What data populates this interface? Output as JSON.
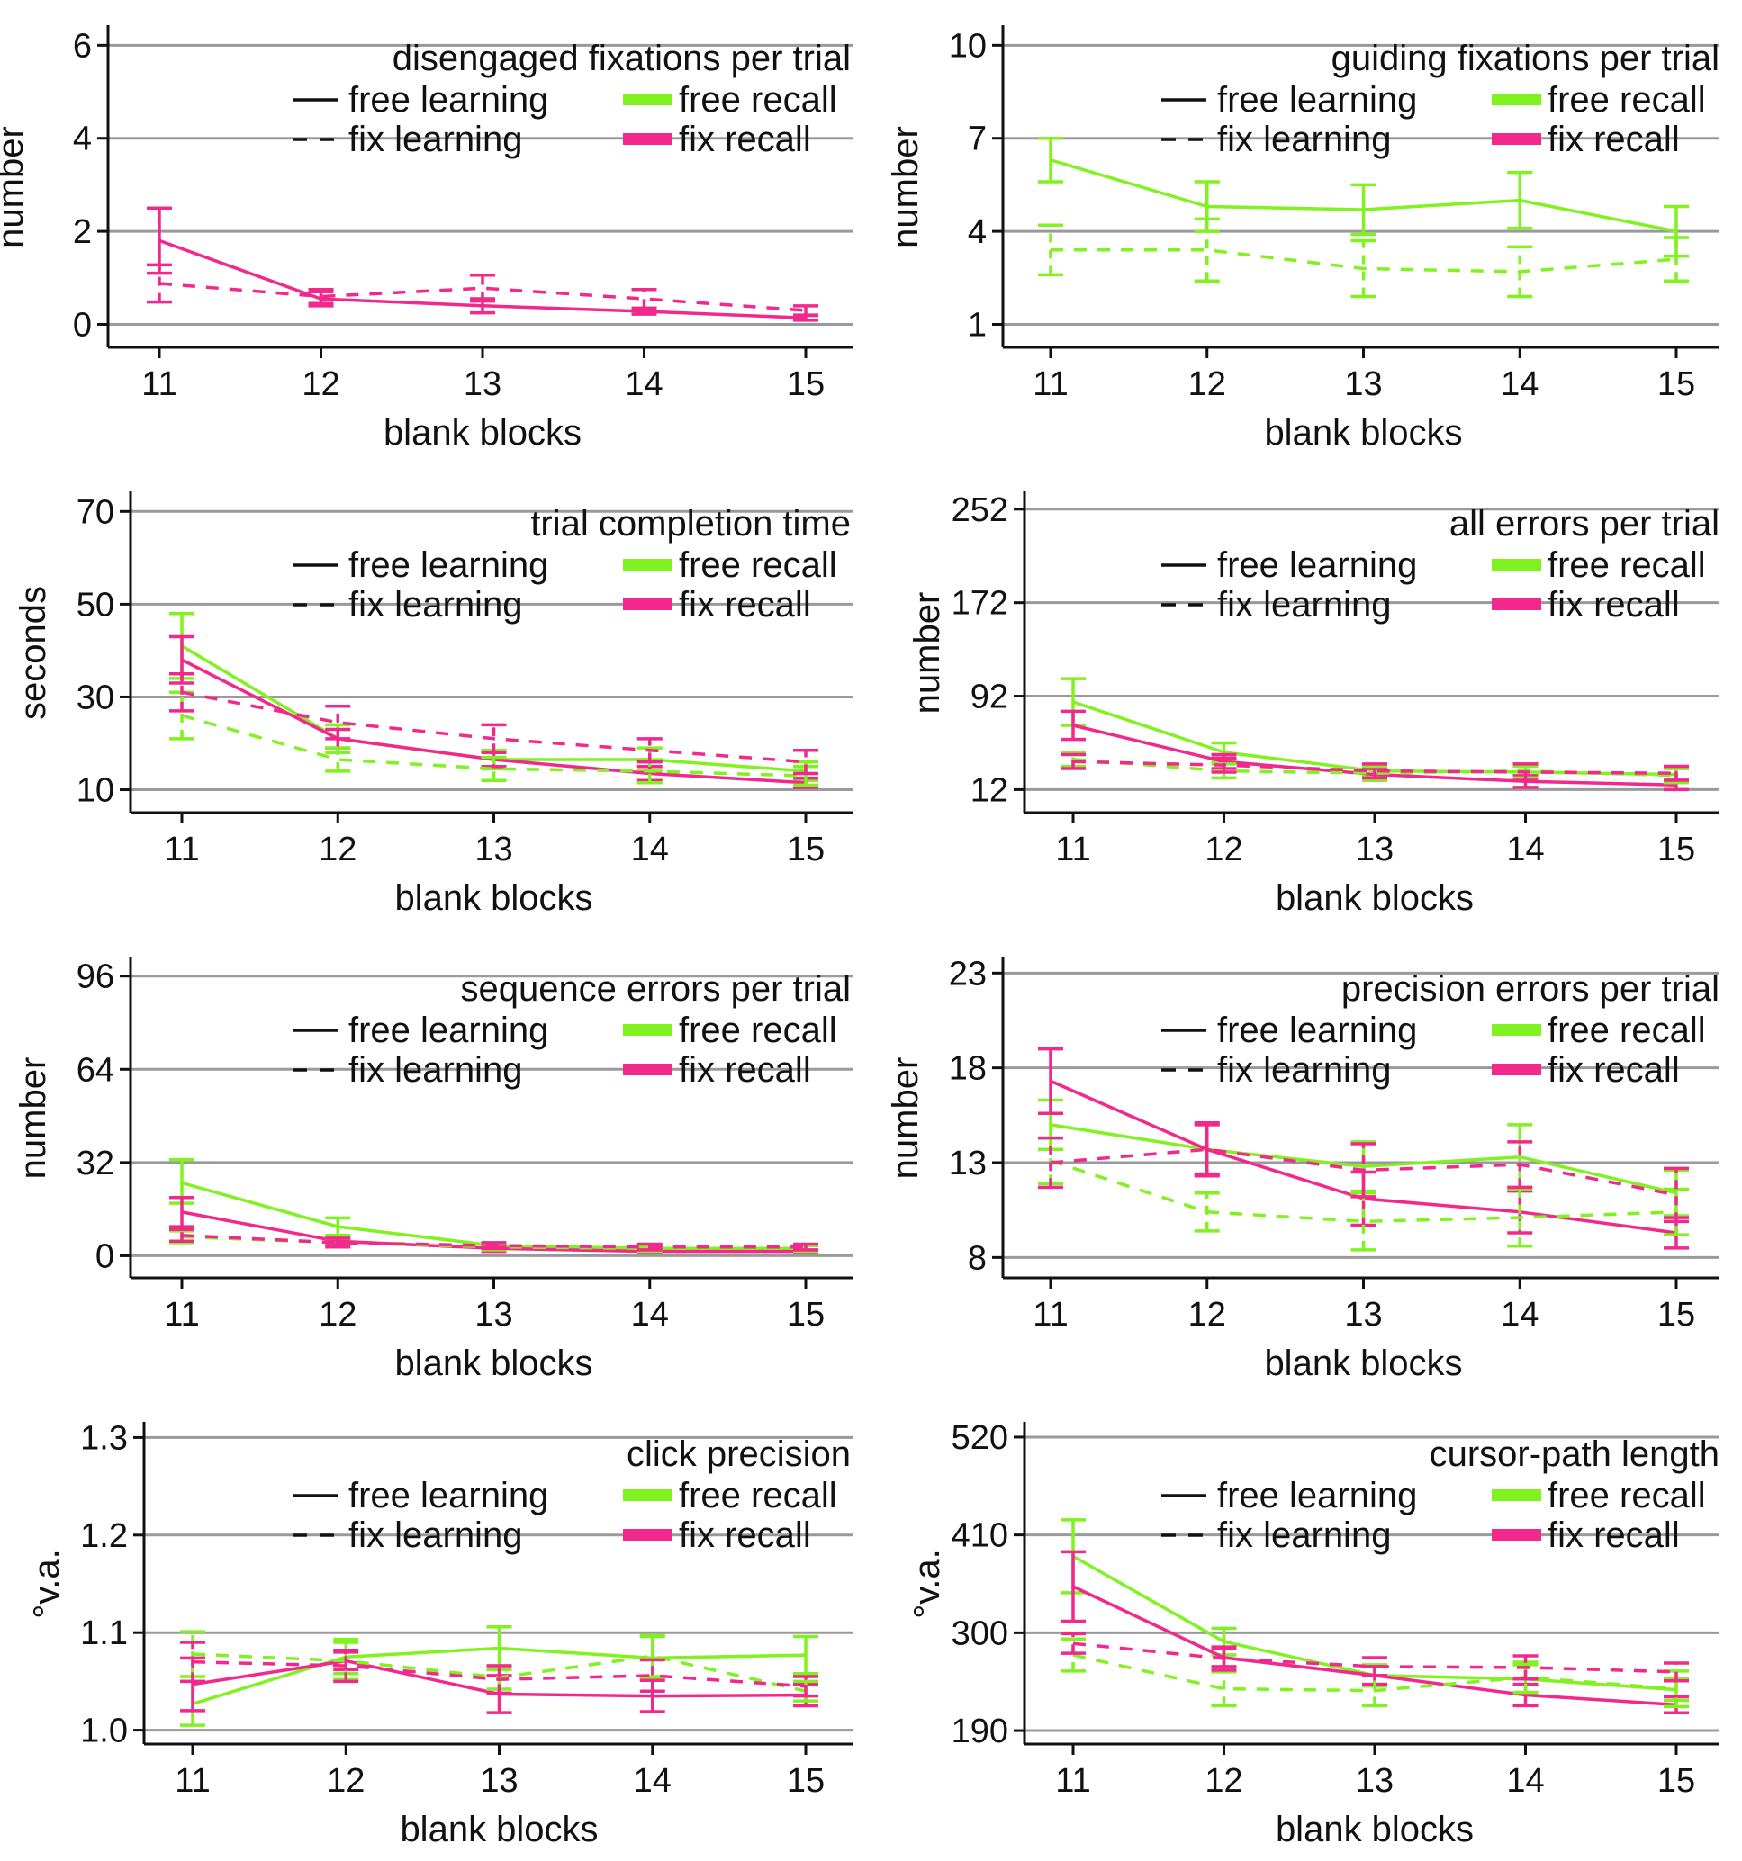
{
  "figure": {
    "colors": {
      "free_recall": "#80f21f",
      "fix_recall": "#f2288c",
      "grid": "#9a9a9a",
      "axis": "#111111"
    },
    "legend": {
      "free_learning": "free learning",
      "fix_learning": "fix learning",
      "free_recall": "free recall",
      "fix_recall": "fix recall"
    }
  },
  "chart_data": [
    {
      "type": "line",
      "title": "disengaged fixations per trial",
      "xlabel": "blank blocks",
      "ylabel": "number",
      "categories": [
        "11",
        "12",
        "13",
        "14",
        "15"
      ],
      "yticks": [
        0,
        2,
        4,
        6
      ],
      "ytick_labels": [
        "0",
        "2",
        "4",
        "6"
      ],
      "ylim": [
        -0.3,
        6.2
      ],
      "grid": true,
      "series": [
        {
          "name": "free learning / fix recall",
          "recall": "fix",
          "learning": "free",
          "values": [
            1.8,
            0.55,
            0.4,
            0.28,
            0.14
          ],
          "lower": [
            1.1,
            0.4,
            0.25,
            0.22,
            0.09
          ],
          "upper": [
            2.5,
            0.7,
            0.55,
            0.34,
            0.19
          ]
        },
        {
          "name": "fix learning / fix recall",
          "recall": "fix",
          "learning": "fix",
          "values": [
            0.88,
            0.6,
            0.78,
            0.55,
            0.3
          ],
          "lower": [
            0.48,
            0.45,
            0.5,
            0.35,
            0.2
          ],
          "upper": [
            1.28,
            0.75,
            1.06,
            0.75,
            0.4
          ]
        }
      ]
    },
    {
      "type": "line",
      "title": "guiding fixations per trial",
      "xlabel": "blank blocks",
      "ylabel": "number",
      "categories": [
        "11",
        "12",
        "13",
        "14",
        "15"
      ],
      "yticks": [
        1,
        4,
        7,
        10
      ],
      "ytick_labels": [
        "1",
        "4",
        "7",
        "10"
      ],
      "ylim": [
        0.55,
        10.3
      ],
      "grid": true,
      "series": [
        {
          "name": "free learning / free recall",
          "recall": "free",
          "learning": "free",
          "values": [
            6.3,
            4.8,
            4.7,
            5.0,
            4.0
          ],
          "lower": [
            5.6,
            4.0,
            3.9,
            4.1,
            3.2
          ],
          "upper": [
            7.0,
            5.6,
            5.5,
            5.9,
            4.8
          ]
        },
        {
          "name": "fix learning / free recall",
          "recall": "free",
          "learning": "fix",
          "values": [
            3.4,
            3.4,
            2.8,
            2.7,
            3.1
          ],
          "lower": [
            2.6,
            2.4,
            1.9,
            1.9,
            2.4
          ],
          "upper": [
            4.2,
            4.4,
            3.7,
            3.5,
            3.8
          ]
        }
      ]
    },
    {
      "type": "line",
      "title": "trial completion time",
      "xlabel": "blank blocks",
      "ylabel": "seconds",
      "categories": [
        "11",
        "12",
        "13",
        "14",
        "15"
      ],
      "yticks": [
        10,
        30,
        50,
        70
      ],
      "ytick_labels": [
        "10",
        "30",
        "50",
        "70"
      ],
      "ylim": [
        7,
        72
      ],
      "grid": true,
      "series": [
        {
          "name": "free learning / free recall",
          "recall": "free",
          "learning": "free",
          "values": [
            41,
            21,
            16.5,
            16.5,
            14
          ],
          "lower": [
            34,
            18,
            14.5,
            14,
            12
          ],
          "upper": [
            48,
            24,
            18.5,
            19,
            16
          ]
        },
        {
          "name": "free learning / fix recall",
          "recall": "fix",
          "learning": "free",
          "values": [
            38,
            21,
            16.5,
            13.5,
            11.5
          ],
          "lower": [
            33,
            19,
            15,
            12,
            10.5
          ],
          "upper": [
            43,
            23,
            18,
            15,
            12.5
          ]
        },
        {
          "name": "fix learning / free recall",
          "recall": "free",
          "learning": "fix",
          "values": [
            26,
            16.5,
            14.5,
            14,
            13
          ],
          "lower": [
            21,
            14,
            12,
            11.5,
            11
          ],
          "upper": [
            31,
            19,
            17,
            16.5,
            15
          ]
        },
        {
          "name": "fix learning / fix recall",
          "recall": "fix",
          "learning": "fix",
          "values": [
            31,
            24.5,
            21,
            18.5,
            16
          ],
          "lower": [
            27,
            21,
            18,
            16,
            13.5
          ],
          "upper": [
            35,
            28,
            24,
            21,
            18.5
          ]
        }
      ]
    },
    {
      "type": "line",
      "title": "all errors per trial",
      "xlabel": "blank blocks",
      "ylabel": "number",
      "categories": [
        "11",
        "12",
        "13",
        "14",
        "15"
      ],
      "yticks": [
        12,
        92,
        172,
        252
      ],
      "ytick_labels": [
        "12",
        "92",
        "172",
        "252"
      ],
      "ylim": [
        0,
        258
      ],
      "grid": true,
      "series": [
        {
          "name": "free learning / free recall",
          "recall": "free",
          "learning": "free",
          "values": [
            87,
            44,
            28,
            27,
            25
          ],
          "lower": [
            67,
            36,
            23,
            22,
            20
          ],
          "upper": [
            107,
            52,
            33,
            32,
            30
          ]
        },
        {
          "name": "free learning / fix recall",
          "recall": "fix",
          "learning": "free",
          "values": [
            67,
            36,
            25,
            19,
            16
          ],
          "lower": [
            55,
            30,
            20,
            14,
            12
          ],
          "upper": [
            79,
            42,
            30,
            24,
            20
          ]
        },
        {
          "name": "fix learning / free recall",
          "recall": "free",
          "learning": "fix",
          "values": [
            38,
            28,
            26,
            28,
            24
          ],
          "lower": [
            32,
            22,
            20,
            22,
            18
          ],
          "upper": [
            44,
            34,
            32,
            34,
            30
          ]
        },
        {
          "name": "fix learning / fix recall",
          "recall": "fix",
          "learning": "fix",
          "values": [
            36,
            33,
            28,
            27,
            26
          ],
          "lower": [
            30,
            27,
            22,
            20,
            20
          ],
          "upper": [
            42,
            39,
            34,
            34,
            32
          ]
        }
      ]
    },
    {
      "type": "line",
      "title": "sequence errors per trial",
      "xlabel": "blank blocks",
      "ylabel": "number",
      "categories": [
        "11",
        "12",
        "13",
        "14",
        "15"
      ],
      "yticks": [
        0,
        32,
        64,
        96
      ],
      "ytick_labels": [
        "0",
        "32",
        "64",
        "96"
      ],
      "ylim": [
        -4.5,
        99
      ],
      "grid": true,
      "series": [
        {
          "name": "free learning / free recall",
          "recall": "free",
          "learning": "free",
          "values": [
            25,
            10,
            3.5,
            2.5,
            2.5
          ],
          "lower": [
            18,
            7,
            2.5,
            1.5,
            1.5
          ],
          "upper": [
            33,
            13,
            4.5,
            3.5,
            3.5
          ]
        },
        {
          "name": "free learning / fix recall",
          "recall": "fix",
          "learning": "free",
          "values": [
            15,
            5,
            2.5,
            1.5,
            1.5
          ],
          "lower": [
            10,
            4,
            1.5,
            1,
            1
          ],
          "upper": [
            20,
            6,
            3.5,
            2,
            2
          ]
        },
        {
          "name": "fix learning / free recall",
          "recall": "free",
          "learning": "fix",
          "values": [
            6.5,
            4.5,
            3,
            2.5,
            2.5
          ],
          "lower": [
            4.5,
            3,
            2,
            1.5,
            1.5
          ],
          "upper": [
            8.5,
            6,
            4,
            3.5,
            3.5
          ]
        },
        {
          "name": "fix learning / fix recall",
          "recall": "fix",
          "learning": "fix",
          "values": [
            7,
            4.5,
            3.5,
            3,
            3
          ],
          "lower": [
            5,
            3,
            2.5,
            2,
            2
          ],
          "upper": [
            9,
            6,
            4.5,
            4,
            4
          ]
        }
      ]
    },
    {
      "type": "line",
      "title": "precision errors per trial",
      "xlabel": "blank blocks",
      "ylabel": "number",
      "categories": [
        "11",
        "12",
        "13",
        "14",
        "15"
      ],
      "yticks": [
        8,
        13,
        18,
        23
      ],
      "ytick_labels": [
        "8",
        "13",
        "18",
        "23"
      ],
      "ylim": [
        7.4,
        23.3
      ],
      "grid": true,
      "series": [
        {
          "name": "free learning / free recall",
          "recall": "free",
          "learning": "free",
          "values": [
            15.0,
            13.7,
            12.8,
            13.3,
            11.4
          ],
          "lower": [
            13.7,
            12.4,
            11.5,
            11.6,
            10.2
          ],
          "upper": [
            16.3,
            15.0,
            14.1,
            15.0,
            12.6
          ]
        },
        {
          "name": "free learning / fix recall",
          "recall": "fix",
          "learning": "free",
          "values": [
            17.3,
            13.7,
            11.1,
            10.4,
            9.3
          ],
          "lower": [
            15.6,
            12.4,
            9.7,
            9.3,
            8.5
          ],
          "upper": [
            19.0,
            15.0,
            12.5,
            11.5,
            10.1
          ]
        },
        {
          "name": "fix learning / free recall",
          "recall": "free",
          "learning": "fix",
          "values": [
            13.1,
            10.4,
            9.9,
            10.1,
            10.4
          ],
          "lower": [
            11.9,
            9.4,
            8.4,
            8.6,
            9.2
          ],
          "upper": [
            14.3,
            11.4,
            11.4,
            11.6,
            11.6
          ]
        },
        {
          "name": "fix learning / fix recall",
          "recall": "fix",
          "learning": "fix",
          "values": [
            13.0,
            13.7,
            12.6,
            12.9,
            11.3
          ],
          "lower": [
            11.7,
            12.3,
            11.2,
            11.7,
            9.9
          ],
          "upper": [
            14.3,
            15.1,
            14.0,
            14.1,
            12.7
          ]
        }
      ]
    },
    {
      "type": "line",
      "title": "click precision",
      "xlabel": "blank blocks",
      "ylabel": "°v.a.",
      "categories": [
        "11",
        "12",
        "13",
        "14",
        "15"
      ],
      "yticks": [
        1.0,
        1.1,
        1.2,
        1.3
      ],
      "ytick_labels": [
        "1.0",
        "1.1",
        "1.2",
        "1.3"
      ],
      "ylim": [
        0.995,
        1.305
      ],
      "grid": true,
      "series": [
        {
          "name": "free learning / free recall",
          "recall": "free",
          "learning": "free",
          "values": [
            1.027,
            1.075,
            1.084,
            1.074,
            1.077
          ],
          "lower": [
            1.005,
            1.058,
            1.062,
            1.052,
            1.058
          ],
          "upper": [
            1.05,
            1.093,
            1.106,
            1.096,
            1.096
          ]
        },
        {
          "name": "free learning / fix recall",
          "recall": "fix",
          "learning": "free",
          "values": [
            1.047,
            1.071,
            1.037,
            1.035,
            1.036
          ],
          "lower": [
            1.02,
            1.062,
            1.018,
            1.019,
            1.025
          ],
          "upper": [
            1.074,
            1.08,
            1.056,
            1.051,
            1.047
          ]
        },
        {
          "name": "fix learning / free recall",
          "recall": "free",
          "learning": "fix",
          "values": [
            1.078,
            1.071,
            1.054,
            1.076,
            1.04
          ],
          "lower": [
            1.055,
            1.052,
            1.042,
            1.055,
            1.03
          ],
          "upper": [
            1.101,
            1.09,
            1.066,
            1.097,
            1.05
          ]
        },
        {
          "name": "fix learning / fix recall",
          "recall": "fix",
          "learning": "fix",
          "values": [
            1.07,
            1.066,
            1.052,
            1.056,
            1.045
          ],
          "lower": [
            1.05,
            1.05,
            1.038,
            1.04,
            1.035
          ],
          "upper": [
            1.09,
            1.082,
            1.066,
            1.072,
            1.055
          ]
        }
      ]
    },
    {
      "type": "line",
      "title": "cursor-path length",
      "xlabel": "blank blocks",
      "ylabel": "°v.a.",
      "categories": [
        "11",
        "12",
        "13",
        "14",
        "15"
      ],
      "yticks": [
        190,
        300,
        410,
        520
      ],
      "ytick_labels": [
        "190",
        "300",
        "410",
        "520"
      ],
      "ylim": [
        185,
        525
      ],
      "grid": true,
      "series": [
        {
          "name": "free learning / free recall",
          "recall": "free",
          "learning": "free",
          "values": [
            386,
            290,
            252,
            248,
            236
          ],
          "lower": [
            345,
            275,
            240,
            232,
            224
          ],
          "upper": [
            427,
            305,
            264,
            264,
            248
          ]
        },
        {
          "name": "free learning / fix recall",
          "recall": "fix",
          "learning": "free",
          "values": [
            352,
            272,
            252,
            230,
            219
          ],
          "lower": [
            313,
            262,
            242,
            218,
            210
          ],
          "upper": [
            391,
            282,
            262,
            242,
            228
          ]
        },
        {
          "name": "fix learning / free recall",
          "recall": "free",
          "learning": "fix",
          "values": [
            275,
            237,
            235,
            250,
            237
          ],
          "lower": [
            257,
            218,
            218,
            233,
            217
          ],
          "upper": [
            293,
            256,
            252,
            267,
            257
          ]
        },
        {
          "name": "fix learning / fix recall",
          "recall": "fix",
          "learning": "fix",
          "values": [
            288,
            271,
            262,
            261,
            256
          ],
          "lower": [
            277,
            258,
            252,
            248,
            246
          ],
          "upper": [
            299,
            284,
            272,
            274,
            266
          ]
        }
      ]
    }
  ]
}
